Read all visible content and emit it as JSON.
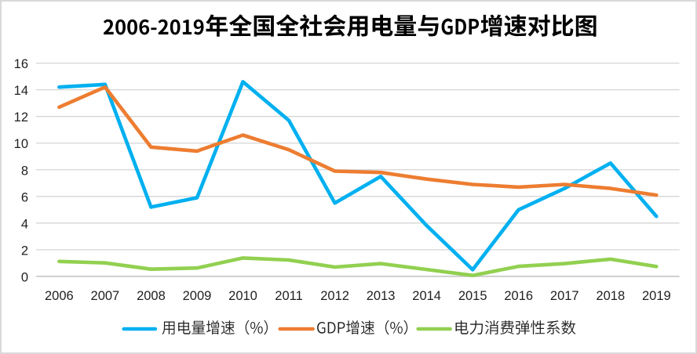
{
  "window": {
    "background": "#FFFFFF",
    "border_color": "#D9D9D9"
  },
  "chart_data": {
    "type": "line",
    "title": "2006-2019年全国全社会用电量与GDP增速对比图",
    "categories": [
      "2006",
      "2007",
      "2008",
      "2009",
      "2010",
      "2011",
      "2012",
      "2013",
      "2014",
      "2015",
      "2016",
      "2017",
      "2018",
      "2019"
    ],
    "series": [
      {
        "name": "用电量增速（%）",
        "color": "#00B0F0",
        "values": [
          14.2,
          14.4,
          5.2,
          5.9,
          14.6,
          11.7,
          5.5,
          7.5,
          3.8,
          0.5,
          5.0,
          6.6,
          8.5,
          4.5
        ]
      },
      {
        "name": "GDP增速（%）",
        "color": "#ED7D31",
        "values": [
          12.7,
          14.2,
          9.7,
          9.4,
          10.6,
          9.5,
          7.9,
          7.8,
          7.3,
          6.9,
          6.7,
          6.9,
          6.6,
          6.1
        ]
      },
      {
        "name": "电力消费弹性系数",
        "color": "#92D050",
        "values": [
          1.12,
          1.01,
          0.54,
          0.63,
          1.38,
          1.23,
          0.7,
          0.96,
          0.52,
          0.07,
          0.75,
          0.96,
          1.29,
          0.74
        ]
      }
    ],
    "xlabel": "",
    "ylabel": "",
    "ylim": [
      0,
      16
    ],
    "y_ticks": [
      0,
      2,
      4,
      6,
      8,
      10,
      12,
      14,
      16
    ],
    "grid": "horizontal",
    "gridline_color": "#D5D5D5",
    "axis_line_color": "#CFCFCF",
    "tick_label_color": "#1F1F1F",
    "legend_position": "bottom"
  }
}
